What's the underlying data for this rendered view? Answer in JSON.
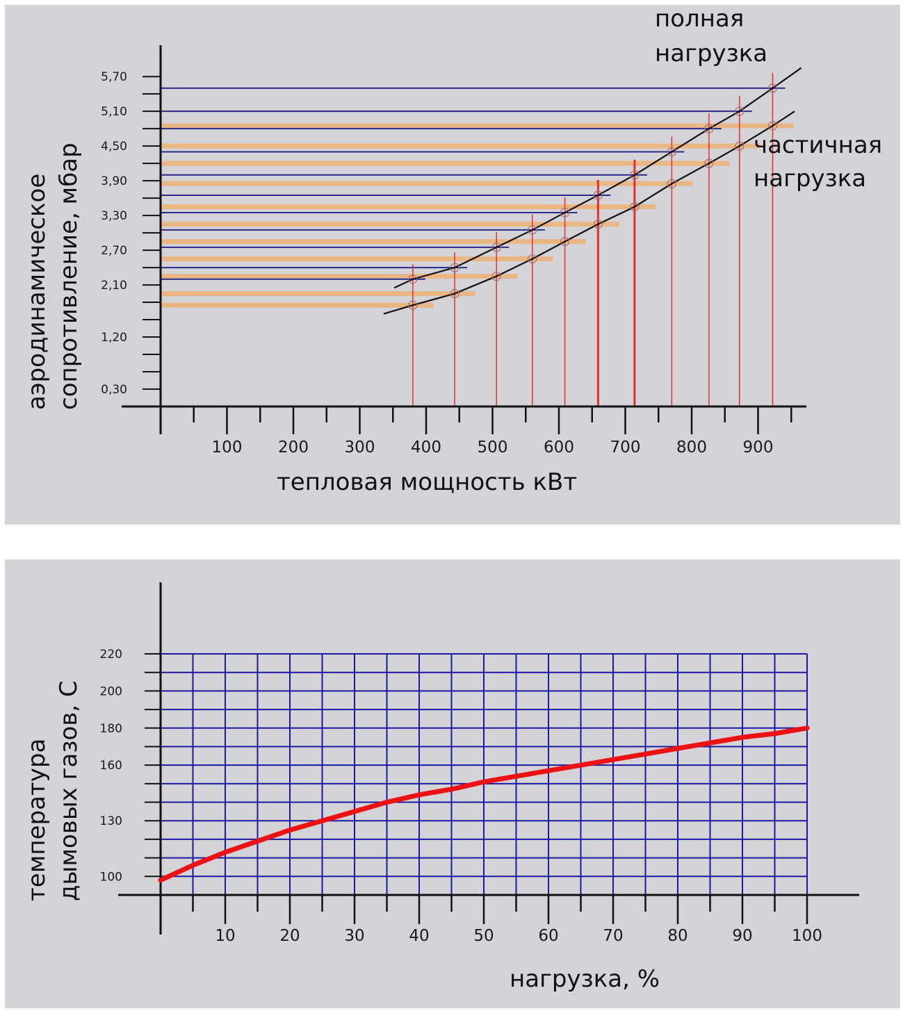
{
  "colors": {
    "background": "#d4d4d8",
    "axis": "#111111",
    "full_load_h": "#2a2a8a",
    "partial_load_h": "#f0b070",
    "vertical_marker": "#e03030",
    "curve": "#111111",
    "grid": "#1a1aa0",
    "temp_curve": "#ee1111"
  },
  "chart_data": [
    {
      "type": "line",
      "title": "",
      "xlabel": "тепловая мощность кВт",
      "ylabel_lines": [
        "аэродинамическое",
        "сопротивление, мбар"
      ],
      "x_ticks": [
        "100",
        "200",
        "300",
        "400",
        "500",
        "600",
        "700",
        "800",
        "900"
      ],
      "y_ticks": [
        "0,30",
        "1,20",
        "2,10",
        "2,70",
        "3,30",
        "3,90",
        "4,50",
        "5,10",
        "5,70"
      ],
      "xlim": [
        0,
        980
      ],
      "ylim": [
        0,
        6.0
      ],
      "series": [
        {
          "name": "полная нагрузка",
          "name_lines": [
            "полная",
            "нагрузка"
          ],
          "x": [
            352,
            380,
            443,
            506,
            560,
            609,
            659,
            714,
            770,
            826,
            872,
            922,
            965
          ],
          "y": [
            2.05,
            2.2,
            2.4,
            2.75,
            3.05,
            3.35,
            3.65,
            4.0,
            4.4,
            4.8,
            5.1,
            5.5,
            5.85
          ]
        },
        {
          "name": "частичная нагрузка",
          "name_lines": [
            "частичная",
            "нагрузка"
          ],
          "x": [
            336,
            380,
            443,
            506,
            560,
            609,
            659,
            714,
            770,
            826,
            872,
            922,
            955
          ],
          "y": [
            1.6,
            1.75,
            1.95,
            2.25,
            2.55,
            2.85,
            3.15,
            3.45,
            3.85,
            4.2,
            4.5,
            4.85,
            5.1
          ]
        }
      ],
      "grid": false,
      "legend": "labels next to lines (top-right)"
    },
    {
      "type": "line",
      "title": "",
      "xlabel": "нагрузка, %",
      "ylabel_lines": [
        "температура",
        "дымовых газов, С"
      ],
      "x_ticks": [
        "10",
        "20",
        "30",
        "40",
        "50",
        "60",
        "70",
        "80",
        "90",
        "100"
      ],
      "y_ticks": [
        "100",
        "130",
        "160",
        "180",
        "200",
        "220"
      ],
      "xlim": [
        0,
        100
      ],
      "ylim": [
        90,
        220
      ],
      "series": [
        {
          "x": [
            0,
            5,
            10,
            15,
            20,
            25,
            30,
            35,
            40,
            45,
            50,
            55,
            60,
            65,
            70,
            75,
            80,
            85,
            90,
            95,
            100
          ],
          "y": [
            98,
            106,
            113,
            119,
            125,
            130,
            135,
            140,
            144,
            147,
            151,
            154,
            157,
            160,
            163,
            166,
            169,
            172,
            175,
            177,
            180
          ]
        }
      ],
      "grid": true
    }
  ]
}
